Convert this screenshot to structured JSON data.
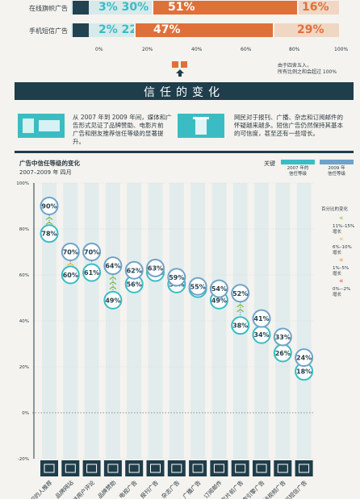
{
  "top_rows": [
    {
      "label": "在线旗帜广告",
      "icon": "web-banner-icon",
      "segments": [
        "3%",
        "30%",
        "51%",
        "16%"
      ],
      "values": [
        3,
        30,
        51,
        16
      ]
    },
    {
      "label": "手机短信广告",
      "icon": "mobile-phone-icon",
      "segments": [
        "2%",
        "22%",
        "47%",
        "29%"
      ],
      "values": [
        2,
        22,
        47,
        29
      ]
    }
  ],
  "top_axis": [
    "0%",
    "20%",
    "40%",
    "60%",
    "80%",
    "100%"
  ],
  "rounding_note_1": "由于四舍五入，",
  "rounding_note_2": "所有比例之和会超过 100%",
  "section_title": "信任的变化",
  "para_left": [
    "从 2007 年到 2009 年间，媒体和广",
    "告形式见证了品牌赞助、电影片前",
    "广告和朋友推荐信任等级的显著提",
    "升。"
  ],
  "para_right": [
    "网民对于报刊、广播、杂志和订阅邮件的",
    "怀疑越来越多。短信广告仍然保持其基本",
    "的可信度，甚至还有一些增长。"
  ],
  "chart_title": "广告中信任等级的变化",
  "chart_subtitle": "2007–2009 年 四月",
  "legend_key": "关键",
  "legend_2007": [
    "2007 年的",
    "信任等级"
  ],
  "legend_2009": [
    "2009 年",
    "信任等级"
  ],
  "legend_title": "百分比的变化",
  "legend_items": [
    {
      "lines": [
        "11%–15%",
        "增长"
      ],
      "color": "#8fc04a"
    },
    {
      "lines": [
        "6%–10%",
        "增长"
      ],
      "color": "#f0b550"
    },
    {
      "lines": [
        "1%–5%",
        "增长"
      ],
      "color": "#ef8a3c"
    },
    {
      "lines": [
        "0%–-2%",
        "增长"
      ],
      "color": "#d65a38"
    }
  ],
  "colors": {
    "navy": "#1f3d4a",
    "teal": "#3bbcc4",
    "blue": "#6fa3c8",
    "orange": "#e0703a",
    "light": "#d7e9ea"
  },
  "chart_data": {
    "type": "dot-change",
    "ylim": [
      -20,
      100
    ],
    "y_ticks": [
      "100%",
      "80%",
      "60%",
      "40%",
      "20%",
      "0%",
      "-20%"
    ],
    "categories": [
      "认识的人推荐",
      "品牌网站",
      "在线用户评论",
      "品牌赞助",
      "电视广告",
      "报刊广告",
      "杂志广告",
      "广播广告",
      "订阅邮件",
      "电影片前广告",
      "搜索引擎广告",
      "在线视频广告",
      "手机短信广告"
    ],
    "icons": [
      "people-icon",
      "website-icon",
      "thumbs-up-icon",
      "sponsor-icon",
      "tv-icon",
      "newspaper-icon",
      "magazine-icon",
      "radio-icon",
      "mail-icon",
      "cinema-icon",
      "search-icon",
      "video-icon",
      "phone-icon"
    ],
    "series": [
      {
        "name": "2007 年的信任等级",
        "values": [
          78,
          60,
          61,
          49,
          56,
          61,
          56,
          54,
          49,
          38,
          34,
          26,
          18
        ]
      },
      {
        "name": "2009 年信任等级",
        "values": [
          90,
          70,
          70,
          64,
          62,
          63,
          59,
          55,
          54,
          52,
          41,
          33,
          24
        ]
      }
    ],
    "labels_top": [
      "90%",
      "70%",
      "70%",
      "64%",
      "62%",
      "63%",
      "59%",
      "55%",
      "54%",
      "52%",
      "41%",
      "33%",
      "24%"
    ],
    "labels_bottom": [
      "78%",
      "60%",
      "61%",
      "49%",
      "56%",
      "61%",
      "56%",
      "54%",
      "49%",
      "38%",
      "34%",
      "26%",
      "18%"
    ]
  }
}
